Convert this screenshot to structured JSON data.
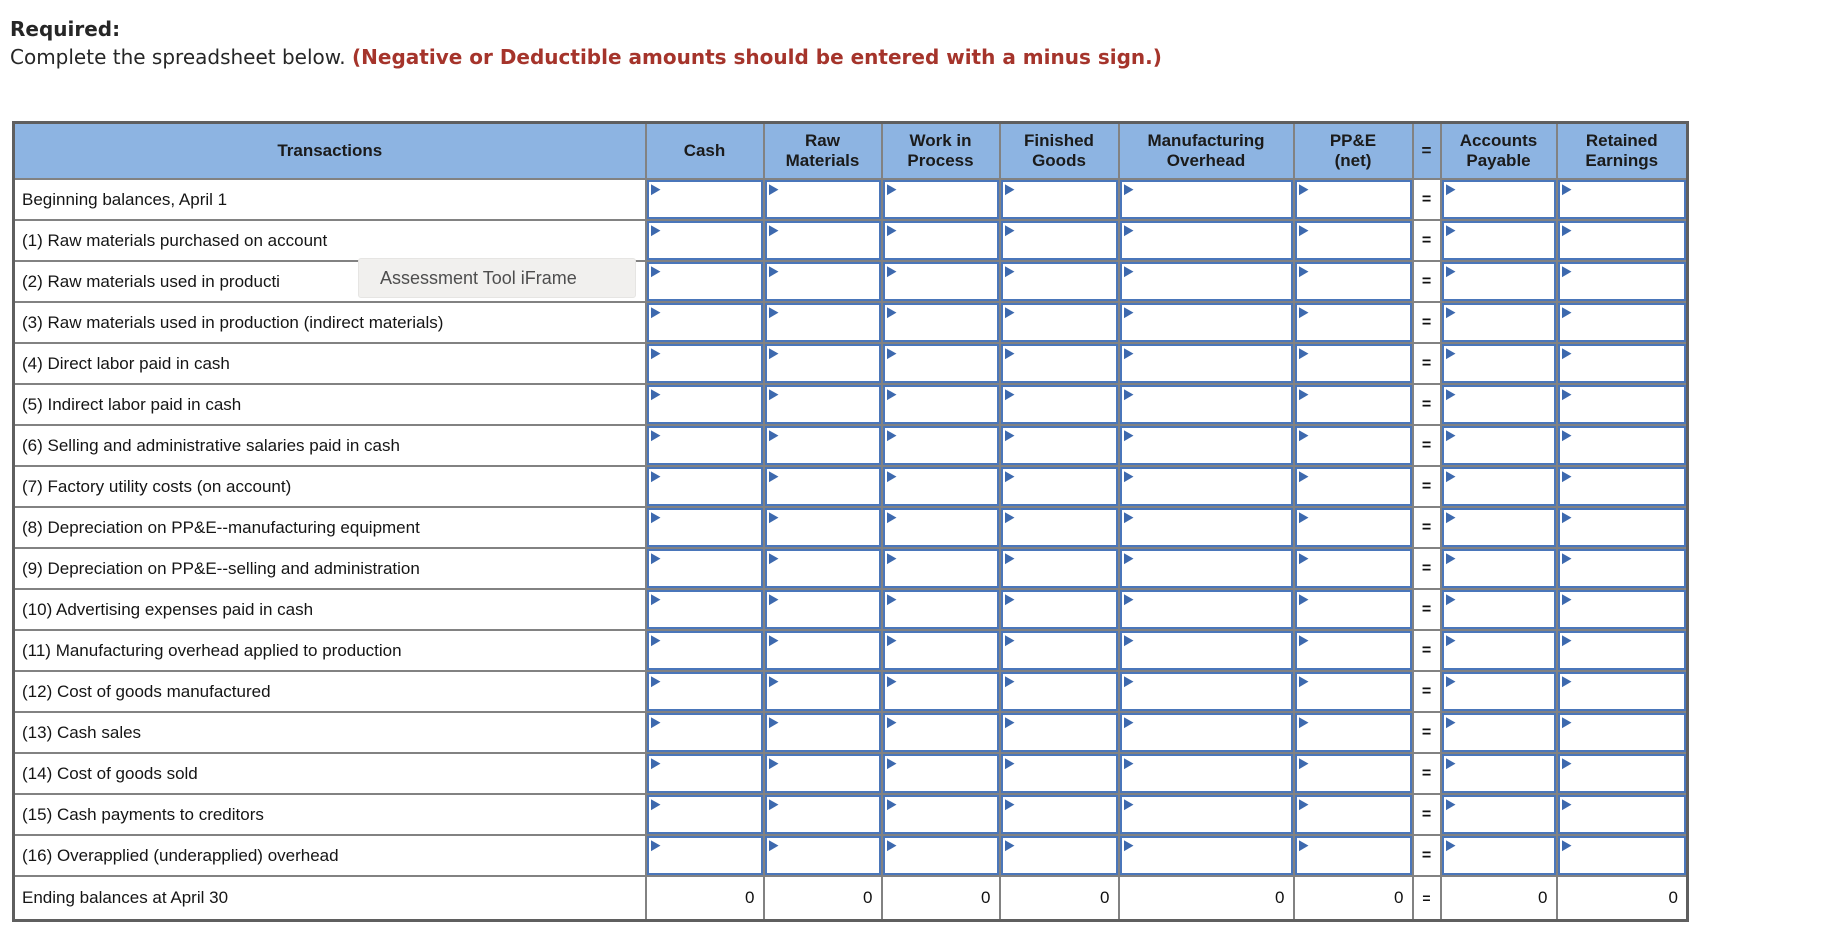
{
  "page": {
    "required_label": "Required:",
    "instruction": "Complete the spreadsheet below. ",
    "warning": "(Negative or Deductible amounts should be entered with a minus sign.)"
  },
  "tooltip": {
    "text": "Assessment Tool iFrame"
  },
  "colors": {
    "header_fill": "#8DB4E2",
    "input_border": "#4a76ba",
    "flag_blue": "#3d69ae",
    "grid_gray": "#828282",
    "warning_red": "#a5342b",
    "tooltip_bg": "#f1f0ee"
  },
  "spreadsheet": {
    "columns": [
      "Transactions",
      "Cash",
      "Raw\nMaterials",
      "Work in\nProcess",
      "Finished\nGoods",
      "Manufacturing\nOverhead",
      "PP&E\n(net)",
      "=",
      "Accounts\nPayable",
      "Retained\nEarnings"
    ],
    "equals_symbol": "=",
    "rows": [
      {
        "label": "Beginning balances, April 1"
      },
      {
        "label": "(1) Raw materials purchased on account"
      },
      {
        "label": "(2) Raw materials used in producti"
      },
      {
        "label": "(3) Raw materials used in production (indirect materials)"
      },
      {
        "label": "(4) Direct labor paid in cash"
      },
      {
        "label": "(5) Indirect labor paid in cash"
      },
      {
        "label": "(6) Selling and administrative salaries paid in cash"
      },
      {
        "label": "(7) Factory utility costs (on account)"
      },
      {
        "label": "(8) Depreciation on PP&E--manufacturing equipment"
      },
      {
        "label": "(9) Depreciation on PP&E--selling and administration"
      },
      {
        "label": "(10) Advertising expenses paid in cash"
      },
      {
        "label": "(11) Manufacturing overhead applied to production"
      },
      {
        "label": "(12) Cost of goods manufactured"
      },
      {
        "label": "(13) Cash sales"
      },
      {
        "label": "(14) Cost of goods sold"
      },
      {
        "label": "(15) Cash payments to creditors"
      },
      {
        "label": "(16) Overapplied (underapplied) overhead"
      }
    ],
    "ending_row": {
      "label": "Ending balances at April 30",
      "values": [
        "0",
        "0",
        "0",
        "0",
        "0",
        "0",
        "0",
        "0"
      ]
    }
  }
}
